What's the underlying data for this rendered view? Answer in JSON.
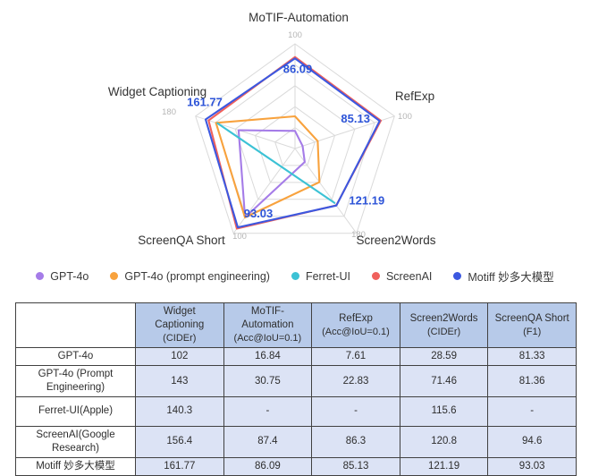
{
  "chart_data": {
    "type": "radar",
    "axes": [
      {
        "label": "MoTIF-Automation",
        "max": 100,
        "max_label": "100"
      },
      {
        "label": "RefExp",
        "max": 100,
        "max_label": "100"
      },
      {
        "label": "Screen2Words",
        "max": 180,
        "max_label": "180"
      },
      {
        "label": "ScreenQA Short",
        "max": 100,
        "max_label": "100"
      },
      {
        "label": "Widget Captioning",
        "max": 180,
        "max_label": "180"
      }
    ],
    "rings": 5,
    "series": [
      {
        "name": "GPT-4o",
        "color": "#a57ce8",
        "values": [
          16.84,
          7.61,
          28.59,
          81.33,
          102
        ]
      },
      {
        "name": "GPT-4o (prompt engineering)",
        "color": "#f8a23d",
        "values": [
          30.75,
          22.83,
          71.46,
          81.36,
          143
        ]
      },
      {
        "name": "Ferret-UI",
        "color": "#3cc2d5",
        "values": [
          null,
          null,
          115.6,
          null,
          140.3
        ]
      },
      {
        "name": "ScreenAI",
        "color": "#f0615c",
        "values": [
          87.4,
          86.3,
          120.8,
          94.6,
          156.4
        ]
      },
      {
        "name": "Motiff 妙多大模型",
        "color": "#3c58e0",
        "values": [
          86.09,
          85.13,
          121.19,
          93.03,
          161.77
        ]
      }
    ],
    "value_label_series": "Motiff 妙多大模型",
    "value_labels": [
      "86.09",
      "85.13",
      "121.19",
      "93.03",
      "161.77"
    ],
    "legend_position": "bottom",
    "colors": {
      "grid": "#dadada",
      "tick": "#b5b5b5",
      "axis_name": "#333333",
      "value_label": "#2d54d8"
    }
  },
  "table": {
    "columns": [
      {
        "title": "",
        "sub": ""
      },
      {
        "title": "Widget Captioning",
        "sub": "(CIDEr)"
      },
      {
        "title": "MoTIF-Automation",
        "sub": "(Acc@IoU=0.1)"
      },
      {
        "title": "RefExp",
        "sub": "(Acc@IoU=0.1)"
      },
      {
        "title": "Screen2Words",
        "sub": "(CIDEr)"
      },
      {
        "title": "ScreenQA Short",
        "sub": "(F1)"
      }
    ],
    "rows": [
      {
        "name": "GPT-4o",
        "values": [
          "102",
          "16.84",
          "7.61",
          "28.59",
          "81.33"
        ]
      },
      {
        "name": "GPT-4o (Prompt Engineering)",
        "values": [
          "143",
          "30.75",
          "22.83",
          "71.46",
          "81.36"
        ]
      },
      {
        "name": "Ferret-UI(Apple)",
        "values": [
          "140.3",
          "-",
          "-",
          "115.6",
          "-"
        ]
      },
      {
        "name": "ScreenAI(Google Research)",
        "values": [
          "156.4",
          "87.4",
          "86.3",
          "120.8",
          "94.6"
        ]
      },
      {
        "name": "Motiff 妙多大模型",
        "values": [
          "161.77",
          "86.09",
          "85.13",
          "121.19",
          "93.03"
        ]
      }
    ],
    "colors": {
      "header_bg": "#b7cae9",
      "cell_bg": "#dce3f5",
      "row_label_bg": "#ffffff",
      "border": "#414141"
    }
  }
}
